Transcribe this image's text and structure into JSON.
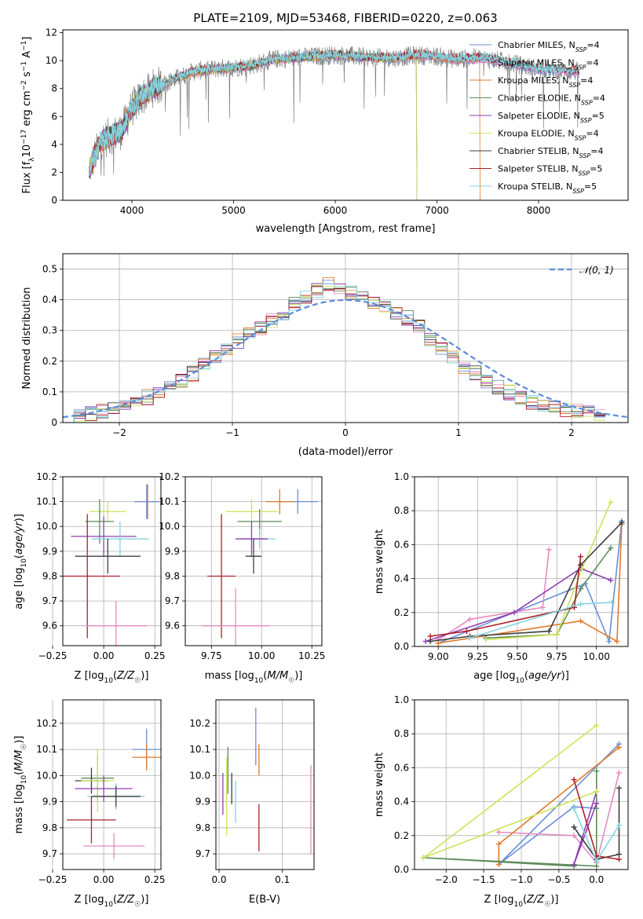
{
  "chart_data": [
    {
      "id": "spectrum",
      "type": "line",
      "title": "PLATE=2109, MJD=53468, FIBERID=0220, z=0.063",
      "xlabel": "wavelength [Angstrom, rest frame]",
      "ylabel": "Flux [f_λ10^-17 erg cm^-2 s^-1 A^-1]",
      "xlim": [
        3320,
        8880
      ],
      "ylim": [
        0,
        12.2
      ],
      "xticks": [
        4000,
        5000,
        6000,
        7000,
        8000
      ],
      "yticks": [
        0,
        2,
        4,
        6,
        8,
        10,
        12
      ],
      "grid": false,
      "legend_position": "top-right",
      "observed_color": "#808080",
      "observed_envelope": [
        {
          "x": 3580,
          "y": 2.2
        },
        {
          "x": 3700,
          "y": 4.3
        },
        {
          "x": 3800,
          "y": 4.6
        },
        {
          "x": 3900,
          "y": 5.0
        },
        {
          "x": 4000,
          "y": 6.6
        },
        {
          "x": 4100,
          "y": 7.4
        },
        {
          "x": 4200,
          "y": 8.0
        },
        {
          "x": 4400,
          "y": 8.6
        },
        {
          "x": 4600,
          "y": 9.2
        },
        {
          "x": 4800,
          "y": 9.4
        },
        {
          "x": 5000,
          "y": 9.5
        },
        {
          "x": 5200,
          "y": 9.7
        },
        {
          "x": 5400,
          "y": 10.1
        },
        {
          "x": 5600,
          "y": 10.2
        },
        {
          "x": 5800,
          "y": 10.3
        },
        {
          "x": 6000,
          "y": 10.4
        },
        {
          "x": 6200,
          "y": 10.3
        },
        {
          "x": 6400,
          "y": 10.2
        },
        {
          "x": 6600,
          "y": 10.2
        },
        {
          "x": 6800,
          "y": 10.4
        },
        {
          "x": 7000,
          "y": 10.3
        },
        {
          "x": 7200,
          "y": 10.1
        },
        {
          "x": 7400,
          "y": 10.2
        },
        {
          "x": 7600,
          "y": 10.0
        },
        {
          "x": 7800,
          "y": 9.7
        },
        {
          "x": 8000,
          "y": 9.4
        },
        {
          "x": 8200,
          "y": 9.3
        },
        {
          "x": 8400,
          "y": 9.2
        }
      ],
      "series": [
        {
          "name": "Chabrier MILES, N_SSP=4",
          "color": "#6a8fd6",
          "ends_at": 8400
        },
        {
          "name": "Salpeter MILES, N_SSP=4",
          "color": "#e68ac3",
          "ends_at": 8400
        },
        {
          "name": "Kroupa MILES, N_SSP=4",
          "color": "#e07b2a",
          "ends_at": 7420
        },
        {
          "name": "Chabrier ELODIE, N_SSP=4",
          "color": "#5e8c5a",
          "ends_at": 6800
        },
        {
          "name": "Salpeter ELODIE, N_SSP=5",
          "color": "#8e3fb2",
          "ends_at": 6800
        },
        {
          "name": "Kroupa ELODIE, N_SSP=4",
          "color": "#cfe35a",
          "ends_at": 6800
        },
        {
          "name": "Chabrier STELIB, N_SSP=4",
          "color": "#3f3f3f",
          "ends_at": 8400
        },
        {
          "name": "Salpeter STELIB, N_SSP=5",
          "color": "#b0202a",
          "ends_at": 8400
        },
        {
          "name": "Kroupa STELIB, N_SSP=5",
          "color": "#84d4e0",
          "ends_at": 8400
        }
      ]
    },
    {
      "id": "residuals",
      "type": "line",
      "xlabel": "(data-model)/error",
      "ylabel": "Normed distribution",
      "xlim": [
        -2.5,
        2.5
      ],
      "ylim": [
        0,
        0.55
      ],
      "xticks": [
        -2,
        -1,
        0,
        1,
        2
      ],
      "yticks": [
        0.0,
        0.1,
        0.2,
        0.3,
        0.4,
        0.5
      ],
      "grid": true,
      "legend_position": "top-right",
      "gaussian": {
        "name": "𝒩(0, 1)",
        "color": "#5b8bd9"
      },
      "hist_base": [
        0.022,
        0.03,
        0.038,
        0.048,
        0.055,
        0.068,
        0.083,
        0.1,
        0.118,
        0.138,
        0.16,
        0.188,
        0.215,
        0.24,
        0.265,
        0.29,
        0.305,
        0.33,
        0.36,
        0.39,
        0.41,
        0.43,
        0.45,
        0.44,
        0.42,
        0.41,
        0.395,
        0.38,
        0.36,
        0.34,
        0.31,
        0.275,
        0.24,
        0.21,
        0.185,
        0.16,
        0.135,
        0.115,
        0.098,
        0.08,
        0.068,
        0.058,
        0.048,
        0.04,
        0.035,
        0.03,
        0.026
      ]
    },
    {
      "id": "age-vs-Z",
      "type": "scatter",
      "xlabel": "Z [log10(Z/Z☉)]",
      "ylabel": "age [log10(age/yr)]",
      "xlim": [
        -0.2,
        0.28
      ],
      "ylim": [
        9.52,
        10.2
      ],
      "xticks": [
        "-0.25",
        "0.00",
        "0.25"
      ],
      "yticks": [
        "9.6",
        "9.7",
        "9.8",
        "9.9",
        "10.0",
        "10.1",
        "10.2"
      ],
      "grid": true,
      "points": [
        {
          "x": 0.215,
          "y": 10.1,
          "xerr": 0.065,
          "yerr": 0.07,
          "color": "#e07b2a"
        },
        {
          "x": 0.21,
          "y": 10.1,
          "xerr": 0.06,
          "yerr": 0.07,
          "color": "#6a8fd6"
        },
        {
          "x": 0.02,
          "y": 10.06,
          "xerr": 0.09,
          "yerr": 0.04,
          "color": "#cfe35a"
        },
        {
          "x": -0.02,
          "y": 10.02,
          "xerr": 0.07,
          "yerr": 0.09,
          "color": "#5e8c5a"
        },
        {
          "x": 0.0,
          "y": 9.96,
          "xerr": 0.16,
          "yerr": 0.08,
          "color": "#8e3fb2"
        },
        {
          "x": 0.08,
          "y": 9.95,
          "xerr": 0.14,
          "yerr": 0.07,
          "color": "#84d4e0"
        },
        {
          "x": 0.02,
          "y": 9.88,
          "xerr": 0.16,
          "yerr": 0.07,
          "color": "#3f3f3f"
        },
        {
          "x": -0.08,
          "y": 9.8,
          "xerr": 0.16,
          "yerr": 0.25,
          "color": "#b0202a"
        },
        {
          "x": 0.06,
          "y": 9.6,
          "xerr": 0.15,
          "yerr": 0.1,
          "color": "#e68ac3"
        }
      ]
    },
    {
      "id": "age-vs-mass",
      "type": "scatter",
      "xlabel": "mass [log10(M/M☉)]",
      "ylabel": "",
      "xlim": [
        9.62,
        10.3
      ],
      "ylim": [
        9.52,
        10.2
      ],
      "xticks": [
        "9.75",
        "10.00",
        "10.25"
      ],
      "yticks": [
        "9.6",
        "9.7",
        "9.8",
        "9.9",
        "10.0",
        "10.1",
        "10.2"
      ],
      "grid": true,
      "points": [
        {
          "x": 10.18,
          "y": 10.1,
          "xerr": 0.1,
          "yerr": 0.05,
          "color": "#6a8fd6"
        },
        {
          "x": 10.09,
          "y": 10.1,
          "xerr": 0.07,
          "yerr": 0.05,
          "color": "#e07b2a"
        },
        {
          "x": 9.95,
          "y": 10.06,
          "xerr": 0.13,
          "yerr": 0.05,
          "color": "#cfe35a"
        },
        {
          "x": 9.99,
          "y": 10.02,
          "xerr": 0.11,
          "yerr": 0.05,
          "color": "#5e8c5a"
        },
        {
          "x": 9.99,
          "y": 9.95,
          "xerr": 0.08,
          "yerr": 0.04,
          "color": "#84d4e0"
        },
        {
          "x": 9.95,
          "y": 9.95,
          "xerr": 0.08,
          "yerr": 0.07,
          "color": "#8e3fb2"
        },
        {
          "x": 9.96,
          "y": 9.88,
          "xerr": 0.04,
          "yerr": 0.07,
          "color": "#3f3f3f"
        },
        {
          "x": 9.8,
          "y": 9.8,
          "xerr": 0.07,
          "yerr": 0.25,
          "color": "#b0202a"
        },
        {
          "x": 9.87,
          "y": 9.6,
          "xerr": 0.17,
          "yerr": 0.15,
          "color": "#e68ac3"
        }
      ]
    },
    {
      "id": "weight-vs-age",
      "type": "line",
      "xlabel": "age [log10(age/yr)]",
      "ylabel": "mass weight",
      "xlim": [
        8.85,
        10.2
      ],
      "ylim": [
        0,
        1.0
      ],
      "xticks": [
        "9.00",
        "9.25",
        "9.50",
        "9.75",
        "10.00"
      ],
      "yticks": [
        "0.0",
        "0.2",
        "0.4",
        "0.6",
        "0.8",
        "1.0"
      ],
      "grid": true,
      "series": [
        {
          "color": "#6a8fd6",
          "points": [
            [
              10.16,
              0.74
            ],
            [
              10.08,
              0.03
            ],
            [
              9.93,
              0.37
            ],
            [
              9.0,
              0.02
            ]
          ]
        },
        {
          "color": "#e68ac3",
          "points": [
            [
              9.7,
              0.57
            ],
            [
              9.66,
              0.23
            ],
            [
              9.2,
              0.16
            ],
            [
              9.0,
              0.04
            ]
          ]
        },
        {
          "color": "#e07b2a",
          "points": [
            [
              10.16,
              0.72
            ],
            [
              10.13,
              0.03
            ],
            [
              9.9,
              0.15
            ],
            [
              9.0,
              0.02
            ]
          ]
        },
        {
          "color": "#5e8c5a",
          "points": [
            [
              10.09,
              0.58
            ],
            [
              9.9,
              0.34
            ],
            [
              9.75,
              0.07
            ],
            [
              9.3,
              0.05
            ]
          ]
        },
        {
          "color": "#8e3fb2",
          "points": [
            [
              10.09,
              0.39
            ],
            [
              9.9,
              0.46
            ],
            [
              9.48,
              0.2
            ],
            [
              8.92,
              0.03
            ]
          ]
        },
        {
          "color": "#cfe35a",
          "points": [
            [
              10.09,
              0.85
            ],
            [
              9.91,
              0.46
            ],
            [
              9.75,
              0.07
            ],
            [
              9.3,
              0.04
            ]
          ]
        },
        {
          "color": "#3f3f3f",
          "points": [
            [
              10.16,
              0.73
            ],
            [
              9.9,
              0.48
            ],
            [
              9.7,
              0.09
            ],
            [
              9.2,
              0.06
            ],
            [
              8.95,
              0.03
            ]
          ]
        },
        {
          "color": "#b0202a",
          "points": [
            [
              9.9,
              0.53
            ],
            [
              9.86,
              0.23
            ],
            [
              9.18,
              0.09
            ],
            [
              8.95,
              0.06
            ]
          ]
        },
        {
          "color": "#84d4e0",
          "points": [
            [
              10.1,
              0.26
            ],
            [
              9.9,
              0.25
            ],
            [
              9.2,
              0.05
            ]
          ]
        }
      ]
    },
    {
      "id": "mass-vs-Z",
      "type": "scatter",
      "xlabel": "Z [log10(Z/Z☉)]",
      "ylabel": "mass [log10(M/M☉)]",
      "xlim": [
        -0.2,
        0.28
      ],
      "ylim": [
        9.64,
        10.29
      ],
      "xticks": [
        "-0.25",
        "0.00",
        "0.25"
      ],
      "yticks": [
        "9.7",
        "9.8",
        "9.9",
        "10.0",
        "10.1",
        "10.2"
      ],
      "grid": true,
      "points": [
        {
          "x": 0.21,
          "y": 10.1,
          "xerr": 0.07,
          "yerr": 0.08,
          "color": "#6a8fd6"
        },
        {
          "x": 0.21,
          "y": 10.07,
          "xerr": 0.07,
          "yerr": 0.05,
          "color": "#e07b2a"
        },
        {
          "x": -0.03,
          "y": 9.99,
          "xerr": 0.08,
          "yerr": 0.09,
          "color": "#5e8c5a"
        },
        {
          "x": -0.06,
          "y": 9.98,
          "xerr": 0.08,
          "yerr": 0.05,
          "color": "#3f3f3f"
        },
        {
          "x": -0.03,
          "y": 9.98,
          "xerr": 0.08,
          "yerr": 0.12,
          "color": "#cfe35a"
        },
        {
          "x": 0.0,
          "y": 9.95,
          "xerr": 0.14,
          "yerr": 0.05,
          "color": "#8e3fb2"
        },
        {
          "x": 0.06,
          "y": 9.92,
          "xerr": 0.14,
          "yerr": 0.05,
          "color": "#84d4e0"
        },
        {
          "x": 0.06,
          "y": 9.92,
          "xerr": 0.12,
          "yerr": 0.04,
          "color": "#3f3f3f"
        },
        {
          "x": -0.06,
          "y": 9.83,
          "xerr": 0.12,
          "yerr": 0.09,
          "color": "#b0202a"
        },
        {
          "x": 0.05,
          "y": 9.73,
          "xerr": 0.15,
          "yerr": 0.05,
          "color": "#e68ac3"
        }
      ]
    },
    {
      "id": "mass-vs-EBV",
      "type": "scatter",
      "xlabel": "E(B-V)",
      "ylabel": "",
      "xlim": [
        -0.005,
        0.15
      ],
      "ylim": [
        9.64,
        10.29
      ],
      "xticks": [
        "0.0",
        "0.1"
      ],
      "yticks": [
        "9.7",
        "9.8",
        "9.9",
        "10.0",
        "10.1",
        "10.2"
      ],
      "grid": true,
      "points": [
        {
          "x": 0.058,
          "y": 10.15,
          "yerr": 0.11,
          "color": "#6a8fd6"
        },
        {
          "x": 0.063,
          "y": 10.06,
          "yerr": 0.06,
          "color": "#e07b2a"
        },
        {
          "x": 0.014,
          "y": 10.02,
          "yerr": 0.09,
          "color": "#5e8c5a"
        },
        {
          "x": 0.02,
          "y": 9.95,
          "yerr": 0.06,
          "color": "#3f3f3f"
        },
        {
          "x": 0.012,
          "y": 9.92,
          "yerr": 0.15,
          "color": "#cfe35a"
        },
        {
          "x": 0.006,
          "y": 9.93,
          "yerr": 0.08,
          "color": "#8e3fb2"
        },
        {
          "x": 0.026,
          "y": 9.9,
          "yerr": 0.08,
          "color": "#84d4e0"
        },
        {
          "x": 0.063,
          "y": 9.8,
          "yerr": 0.09,
          "color": "#b0202a"
        },
        {
          "x": 0.145,
          "y": 9.87,
          "yerr": 0.17,
          "color": "#e68ac3"
        }
      ]
    },
    {
      "id": "weight-vs-Z",
      "type": "line",
      "xlabel": "Z [log10(Z/Z☉)]",
      "ylabel": "mass weight",
      "xlim": [
        -2.42,
        0.42
      ],
      "ylim": [
        0,
        1.0
      ],
      "xticks": [
        "-2.0",
        "-1.5",
        "-1.0",
        "-0.5",
        "0.0"
      ],
      "yticks": [
        "0.0",
        "0.2",
        "0.4",
        "0.6",
        "0.8",
        "1.0"
      ],
      "grid": true,
      "series": [
        {
          "color": "#6a8fd6",
          "points": [
            [
              0.3,
              0.74
            ],
            [
              -1.3,
              0.03
            ],
            [
              -0.3,
              0.37
            ],
            [
              0.0,
              0.36
            ]
          ]
        },
        {
          "color": "#e68ac3",
          "points": [
            [
              -1.3,
              0.22
            ],
            [
              -0.3,
              0.2
            ],
            [
              0.0,
              0.04
            ],
            [
              0.3,
              0.57
            ]
          ]
        },
        {
          "color": "#e07b2a",
          "points": [
            [
              0.3,
              0.72
            ],
            [
              -1.3,
              0.15
            ],
            [
              -1.3,
              0.03
            ]
          ]
        },
        {
          "color": "#5e8c5a",
          "points": [
            [
              0.0,
              0.58
            ],
            [
              0.0,
              0.02
            ],
            [
              -2.3,
              0.07
            ],
            [
              -0.3,
              0.02
            ]
          ]
        },
        {
          "color": "#8e3fb2",
          "points": [
            [
              0.0,
              0.46
            ],
            [
              -0.3,
              0.03
            ],
            [
              0.0,
              0.39
            ]
          ]
        },
        {
          "color": "#cfe35a",
          "points": [
            [
              0.0,
              0.85
            ],
            [
              -2.3,
              0.07
            ],
            [
              0.0,
              0.46
            ]
          ]
        },
        {
          "color": "#3f3f3f",
          "points": [
            [
              0.3,
              0.48
            ],
            [
              0.3,
              0.09
            ],
            [
              0.0,
              0.06
            ],
            [
              -0.3,
              0.25
            ]
          ]
        },
        {
          "color": "#b0202a",
          "points": [
            [
              -0.3,
              0.53
            ],
            [
              0.0,
              0.08
            ],
            [
              0.3,
              0.06
            ]
          ]
        },
        {
          "color": "#84d4e0",
          "points": [
            [
              0.3,
              0.26
            ],
            [
              0.0,
              0.05
            ],
            [
              -0.3,
              0.36
            ]
          ]
        }
      ]
    }
  ]
}
